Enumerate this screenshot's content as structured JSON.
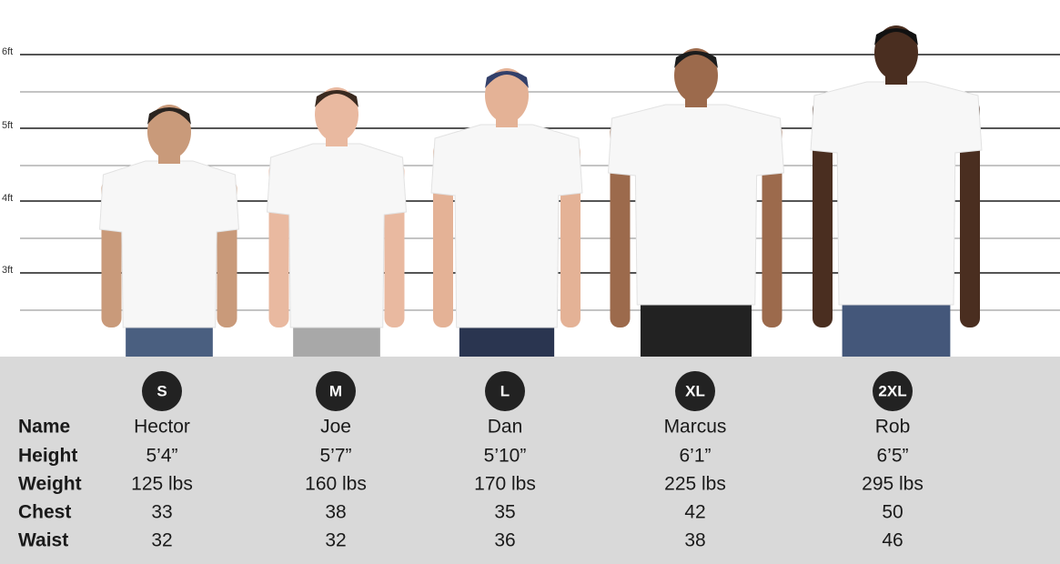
{
  "height_scale": [
    "6ft",
    "5ft",
    "4ft",
    "3ft"
  ],
  "sizes": [
    "S",
    "M",
    "L",
    "XL",
    "2XL"
  ],
  "table": {
    "row_labels": [
      "Name",
      "Height",
      "Weight",
      "Chest",
      "Waist"
    ],
    "columns": [
      [
        "Hector",
        "5’4”",
        "125 lbs",
        "33",
        "32"
      ],
      [
        "Joe",
        "5’7”",
        "160 lbs",
        "38",
        "32"
      ],
      [
        "Dan",
        "5’10”",
        "170 lbs",
        "35",
        "36"
      ],
      [
        "Marcus",
        "6’1”",
        "225 lbs",
        "42",
        "38"
      ],
      [
        "Rob",
        "6’5”",
        "295 lbs",
        "50",
        "46"
      ]
    ]
  }
}
